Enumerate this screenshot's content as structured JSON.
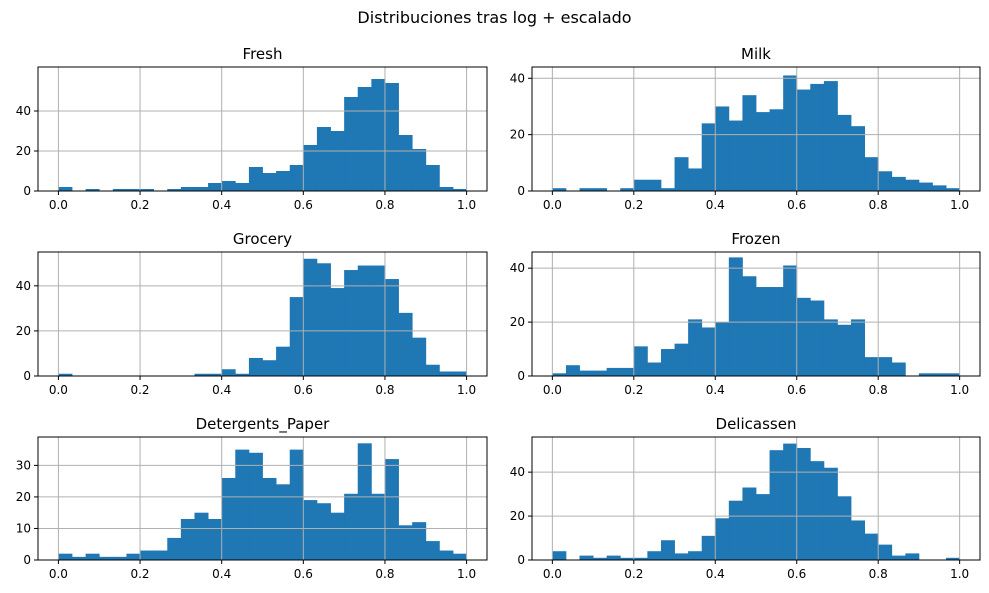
{
  "figure": {
    "suptitle": "Distribuciones tras log + escalado"
  },
  "style": {
    "bar_color": "#1f77b4",
    "grid_color": "#b0b0b0",
    "axes_color": "#000000"
  },
  "chart_data": [
    {
      "type": "bar",
      "title": "Fresh",
      "grid": true,
      "xlim": [
        -0.05,
        1.05
      ],
      "ylim": [
        0,
        62
      ],
      "xticks": [
        0.0,
        0.2,
        0.4,
        0.6,
        0.8,
        1.0
      ],
      "xtick_labels": [
        "0.0",
        "0.2",
        "0.4",
        "0.6",
        "0.8",
        "1.0"
      ],
      "yticks": [
        0,
        20,
        40
      ],
      "ytick_labels": [
        "0",
        "20",
        "40"
      ],
      "bin_edges": [
        0.0,
        0.0333,
        0.0667,
        0.1,
        0.1333,
        0.1667,
        0.2,
        0.2333,
        0.2667,
        0.3,
        0.3333,
        0.3667,
        0.4,
        0.4333,
        0.4667,
        0.5,
        0.5333,
        0.5667,
        0.6,
        0.6333,
        0.6667,
        0.7,
        0.7333,
        0.7667,
        0.8,
        0.8333,
        0.8667,
        0.9,
        0.9333,
        0.9667,
        1.0
      ],
      "values": [
        2,
        0,
        1,
        0,
        1,
        1,
        1,
        0,
        1,
        2,
        2,
        4,
        5,
        4,
        12,
        9,
        10,
        13,
        23,
        32,
        30,
        47,
        52,
        56,
        54,
        28,
        21,
        13,
        2,
        1
      ]
    },
    {
      "type": "bar",
      "title": "Milk",
      "grid": true,
      "xlim": [
        -0.05,
        1.05
      ],
      "ylim": [
        0,
        44
      ],
      "xticks": [
        0.0,
        0.2,
        0.4,
        0.6,
        0.8,
        1.0
      ],
      "xtick_labels": [
        "0.0",
        "0.2",
        "0.4",
        "0.6",
        "0.8",
        "1.0"
      ],
      "yticks": [
        0,
        20,
        40
      ],
      "ytick_labels": [
        "0",
        "20",
        "40"
      ],
      "bin_edges": [
        0.0,
        0.0333,
        0.0667,
        0.1,
        0.1333,
        0.1667,
        0.2,
        0.2333,
        0.2667,
        0.3,
        0.3333,
        0.3667,
        0.4,
        0.4333,
        0.4667,
        0.5,
        0.5333,
        0.5667,
        0.6,
        0.6333,
        0.6667,
        0.7,
        0.7333,
        0.7667,
        0.8,
        0.8333,
        0.8667,
        0.9,
        0.9333,
        0.9667,
        1.0
      ],
      "values": [
        1,
        0,
        1,
        1,
        0,
        1,
        4,
        4,
        1,
        12,
        8,
        24,
        30,
        25,
        34,
        28,
        29,
        41,
        36,
        38,
        39,
        27,
        23,
        12,
        7,
        5,
        4,
        3,
        2,
        1
      ]
    },
    {
      "type": "bar",
      "title": "Grocery",
      "grid": true,
      "xlim": [
        -0.05,
        1.05
      ],
      "ylim": [
        0,
        55
      ],
      "xticks": [
        0.0,
        0.2,
        0.4,
        0.6,
        0.8,
        1.0
      ],
      "xtick_labels": [
        "0.0",
        "0.2",
        "0.4",
        "0.6",
        "0.8",
        "1.0"
      ],
      "yticks": [
        0,
        20,
        40
      ],
      "ytick_labels": [
        "0",
        "20",
        "40"
      ],
      "bin_edges": [
        0.0,
        0.0333,
        0.0667,
        0.1,
        0.1333,
        0.1667,
        0.2,
        0.2333,
        0.2667,
        0.3,
        0.3333,
        0.3667,
        0.4,
        0.4333,
        0.4667,
        0.5,
        0.5333,
        0.5667,
        0.6,
        0.6333,
        0.6667,
        0.7,
        0.7333,
        0.7667,
        0.8,
        0.8333,
        0.8667,
        0.9,
        0.9333,
        0.9667,
        1.0
      ],
      "values": [
        1,
        0,
        0,
        0,
        0,
        0,
        0,
        0,
        0,
        0,
        1,
        1,
        3,
        1,
        8,
        7,
        13,
        35,
        52,
        50,
        39,
        47,
        49,
        49,
        43,
        28,
        17,
        5,
        2,
        2
      ]
    },
    {
      "type": "bar",
      "title": "Frozen",
      "grid": true,
      "xlim": [
        -0.05,
        1.05
      ],
      "ylim": [
        0,
        46
      ],
      "xticks": [
        0.0,
        0.2,
        0.4,
        0.6,
        0.8,
        1.0
      ],
      "xtick_labels": [
        "0.0",
        "0.2",
        "0.4",
        "0.6",
        "0.8",
        "1.0"
      ],
      "yticks": [
        0,
        20,
        40
      ],
      "ytick_labels": [
        "0",
        "20",
        "40"
      ],
      "bin_edges": [
        0.0,
        0.0333,
        0.0667,
        0.1,
        0.1333,
        0.1667,
        0.2,
        0.2333,
        0.2667,
        0.3,
        0.3333,
        0.3667,
        0.4,
        0.4333,
        0.4667,
        0.5,
        0.5333,
        0.5667,
        0.6,
        0.6333,
        0.6667,
        0.7,
        0.7333,
        0.7667,
        0.8,
        0.8333,
        0.8667,
        0.9,
        0.9333,
        0.9667,
        1.0
      ],
      "values": [
        1,
        4,
        2,
        2,
        3,
        3,
        11,
        5,
        10,
        12,
        21,
        18,
        20,
        44,
        37,
        33,
        33,
        41,
        29,
        28,
        21,
        19,
        21,
        7,
        7,
        5,
        0,
        1,
        1,
        1
      ]
    },
    {
      "type": "bar",
      "title": "Detergents_Paper",
      "grid": true,
      "xlim": [
        -0.05,
        1.05
      ],
      "ylim": [
        0,
        39
      ],
      "xticks": [
        0.0,
        0.2,
        0.4,
        0.6,
        0.8,
        1.0
      ],
      "xtick_labels": [
        "0.0",
        "0.2",
        "0.4",
        "0.6",
        "0.8",
        "1.0"
      ],
      "yticks": [
        0,
        10,
        20,
        30
      ],
      "ytick_labels": [
        "0",
        "10",
        "20",
        "30"
      ],
      "bin_edges": [
        0.0,
        0.0333,
        0.0667,
        0.1,
        0.1333,
        0.1667,
        0.2,
        0.2333,
        0.2667,
        0.3,
        0.3333,
        0.3667,
        0.4,
        0.4333,
        0.4667,
        0.5,
        0.5333,
        0.5667,
        0.6,
        0.6333,
        0.6667,
        0.7,
        0.7333,
        0.7667,
        0.8,
        0.8333,
        0.8667,
        0.9,
        0.9333,
        0.9667,
        1.0
      ],
      "values": [
        2,
        1,
        2,
        1,
        1,
        2,
        3,
        3,
        7,
        13,
        15,
        13,
        26,
        35,
        34,
        26,
        24,
        35,
        19,
        18,
        15,
        21,
        37,
        21,
        32,
        11,
        12,
        6,
        3,
        2
      ]
    },
    {
      "type": "bar",
      "title": "Delicassen",
      "grid": true,
      "xlim": [
        -0.05,
        1.05
      ],
      "ylim": [
        0,
        56
      ],
      "xticks": [
        0.0,
        0.2,
        0.4,
        0.6,
        0.8,
        1.0
      ],
      "xtick_labels": [
        "0.0",
        "0.2",
        "0.4",
        "0.6",
        "0.8",
        "1.0"
      ],
      "yticks": [
        0,
        20,
        40
      ],
      "ytick_labels": [
        "0",
        "20",
        "40"
      ],
      "bin_edges": [
        0.0,
        0.0333,
        0.0667,
        0.1,
        0.1333,
        0.1667,
        0.2,
        0.2333,
        0.2667,
        0.3,
        0.3333,
        0.3667,
        0.4,
        0.4333,
        0.4667,
        0.5,
        0.5333,
        0.5667,
        0.6,
        0.6333,
        0.6667,
        0.7,
        0.7333,
        0.7667,
        0.8,
        0.8333,
        0.8667,
        0.9,
        0.9333,
        0.9667,
        1.0
      ],
      "values": [
        4,
        0,
        2,
        1,
        2,
        1,
        1,
        4,
        9,
        3,
        4,
        11,
        19,
        27,
        33,
        30,
        50,
        53,
        51,
        45,
        42,
        29,
        18,
        12,
        7,
        2,
        3,
        0,
        0,
        1
      ]
    }
  ]
}
